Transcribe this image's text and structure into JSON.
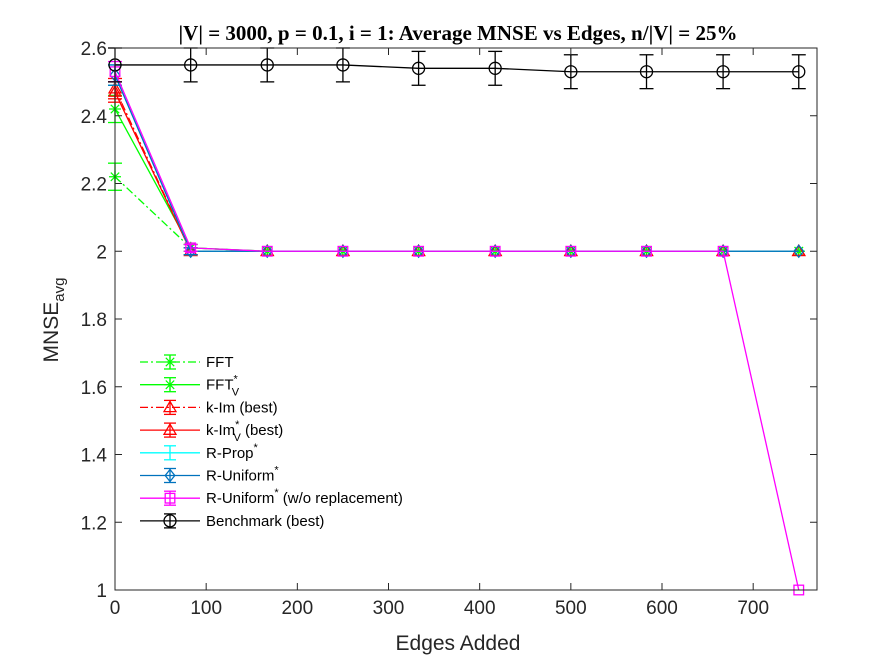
{
  "chart_data": {
    "type": "line",
    "title": "|V| = 3000, p = 0.1, i = 1: Average MNSE vs Edges, n/|V| = 25%",
    "xlabel": "Edges Added",
    "ylabel_main": "MNSE",
    "ylabel_sub": "avg",
    "xlim": [
      0,
      770
    ],
    "ylim": [
      1,
      2.6
    ],
    "xticks": [
      0,
      100,
      200,
      300,
      400,
      500,
      600,
      700
    ],
    "yticks": [
      1,
      1.2,
      1.4,
      1.6,
      1.8,
      2,
      2.2,
      2.4,
      2.6
    ],
    "ytick_labels": [
      "1",
      "1.2",
      "1.4",
      "1.6",
      "1.8",
      "2",
      "2.2",
      "2.4",
      "2.6"
    ],
    "grid": false,
    "legend_position": "lower-left",
    "x": [
      0,
      83,
      167,
      250,
      333,
      417,
      500,
      583,
      667,
      750
    ],
    "series": [
      {
        "name": "FFT",
        "sup": "",
        "sub": "",
        "color": "#00ff00",
        "dash": "dashdot",
        "marker": "asterisk",
        "values": [
          2.22,
          2.01,
          2.0,
          2.0,
          2.0,
          2.0,
          2.0,
          2.0,
          2.0,
          2.0
        ],
        "errors": [
          0.04,
          0.01,
          0,
          0,
          0,
          0,
          0,
          0,
          0,
          0
        ]
      },
      {
        "name": "FFT",
        "sup": "*",
        "sub": "V",
        "color": "#00ff00",
        "dash": "solid",
        "marker": "asterisk",
        "values": [
          2.42,
          2.01,
          2.0,
          2.0,
          2.0,
          2.0,
          2.0,
          2.0,
          2.0,
          2.0
        ],
        "errors": [
          0.04,
          0.01,
          0,
          0,
          0,
          0,
          0,
          0,
          0,
          0
        ]
      },
      {
        "name": " k-Im (best)",
        "sup": "",
        "sub": "",
        "color": "#ff0000",
        "dash": "dashdot",
        "marker": "triangle",
        "values": [
          2.48,
          2.0,
          2.0,
          2.0,
          2.0,
          2.0,
          2.0,
          2.0,
          2.0,
          2.0
        ],
        "errors": [
          0.03,
          0.01,
          0,
          0,
          0,
          0,
          0,
          0,
          0,
          0
        ]
      },
      {
        "name": " k-Im",
        "sup": "*",
        "sub": "V",
        "suffix": " (best)",
        "color": "#ff0000",
        "dash": "solid",
        "marker": "triangle",
        "values": [
          2.47,
          2.0,
          2.0,
          2.0,
          2.0,
          2.0,
          2.0,
          2.0,
          2.0,
          2.0
        ],
        "errors": [
          0.03,
          0.01,
          0,
          0,
          0,
          0,
          0,
          0,
          0,
          0
        ]
      },
      {
        "name": "R-Prop",
        "sup": "*",
        "sub": "",
        "color": "#00ffff",
        "dash": "solid",
        "marker": "none",
        "values": [
          2.52,
          2.0,
          2.0,
          2.0,
          2.0,
          2.0,
          2.0,
          2.0,
          2.0,
          2.0
        ],
        "errors": [
          0.03,
          0.01,
          0,
          0,
          0,
          0,
          0,
          0,
          0,
          0
        ]
      },
      {
        "name": "R-Uniform",
        "sup": "*",
        "sub": "",
        "color": "#0072bd",
        "dash": "solid",
        "marker": "diamond",
        "values": [
          2.52,
          2.0,
          2.0,
          2.0,
          2.0,
          2.0,
          2.0,
          2.0,
          2.0,
          2.0
        ],
        "errors": [
          0.03,
          0.01,
          0,
          0,
          0,
          0,
          0,
          0,
          0,
          0
        ]
      },
      {
        "name": "R-Uniform",
        "sup": "*",
        "sub": "",
        "suffix": " (w/o replacement)",
        "color": "#ff00ff",
        "dash": "solid",
        "marker": "square",
        "values": [
          2.53,
          2.01,
          2.0,
          2.0,
          2.0,
          2.0,
          2.0,
          2.0,
          2.0,
          1.0
        ],
        "errors": [
          0.03,
          0.01,
          0,
          0,
          0,
          0,
          0,
          0,
          0,
          0
        ]
      },
      {
        "name": "Benchmark (best)",
        "sup": "",
        "sub": "",
        "color": "#000000",
        "dash": "solid",
        "marker": "circle",
        "values": [
          2.55,
          2.55,
          2.55,
          2.55,
          2.54,
          2.54,
          2.53,
          2.53,
          2.53,
          2.53
        ],
        "errors": [
          0.05,
          0.05,
          0.05,
          0.05,
          0.05,
          0.05,
          0.05,
          0.05,
          0.05,
          0.05
        ]
      }
    ]
  }
}
